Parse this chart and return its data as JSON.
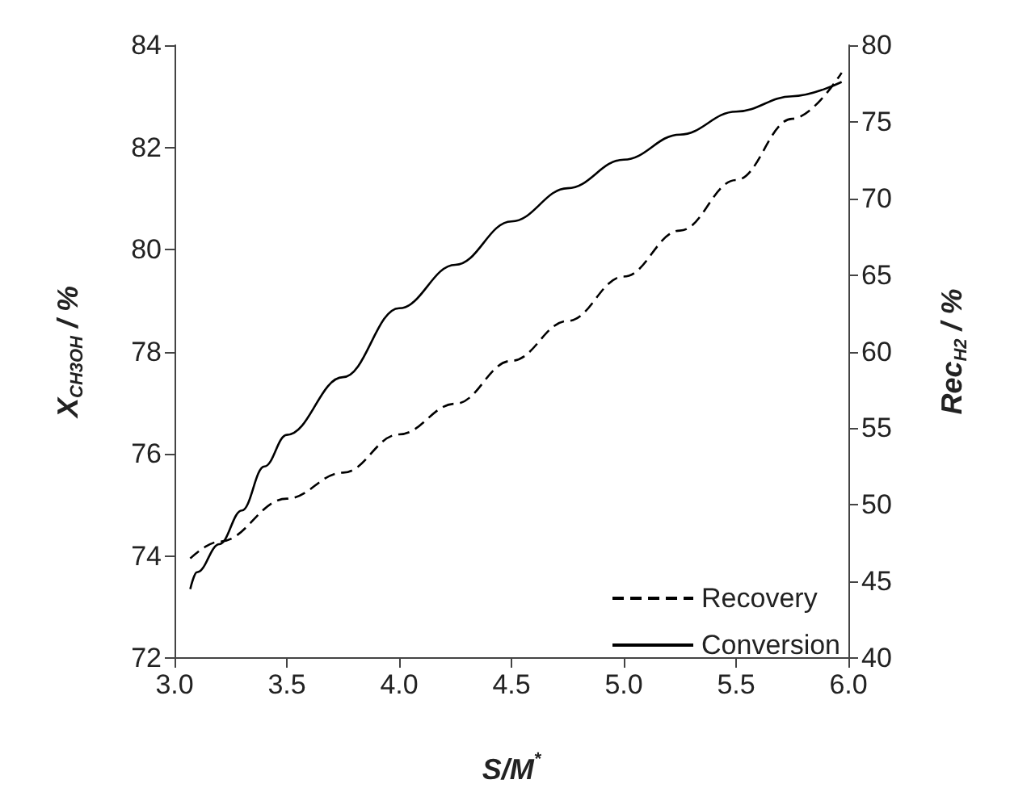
{
  "chart_data": {
    "type": "line",
    "xlabel": "S/M$^{*}$",
    "ylabel": "X$_{CH3OH}$ / %",
    "y2label": "Rec$_{H2}$ / %",
    "xlim": [
      3.0,
      6.0
    ],
    "xticks": [
      {
        "value": 3,
        "label": "3.0"
      },
      3.5,
      {
        "value": 4,
        "label": "4.0"
      },
      4.5,
      {
        "value": 5,
        "label": "5.0"
      },
      5.5,
      {
        "value": 6,
        "label": "6.0"
      }
    ],
    "ylim": [
      72,
      84
    ],
    "yticks": [
      72,
      74,
      76,
      78,
      80,
      82,
      84
    ],
    "y2lim": [
      40,
      80
    ],
    "y2ticks": [
      40,
      45,
      50,
      55,
      60,
      65,
      70,
      75,
      80
    ],
    "grid": false,
    "legend": "bottom right",
    "marker": "none",
    "series": [
      {
        "name": "Recovery",
        "color": "#000000",
        "line_style": "dashed",
        "axis": "y2",
        "x": [
          3.07,
          3.2,
          3.5,
          3.75,
          4.0,
          4.25,
          4.5,
          4.75,
          5.0,
          5.25,
          5.5,
          5.75,
          5.97
        ],
        "values": [
          46.5,
          47.6,
          50.4,
          52.1,
          54.6,
          56.6,
          59.4,
          62.0,
          64.9,
          67.9,
          71.2,
          75.2,
          78.2
        ]
      },
      {
        "name": "Conversion",
        "color": "#000000",
        "line_style": "solid",
        "x": [
          3.07,
          3.1,
          3.2,
          3.3,
          3.4,
          3.5,
          3.75,
          4.0,
          4.25,
          4.5,
          4.75,
          5.0,
          5.25,
          5.5,
          5.75,
          5.97
        ],
        "values": [
          73.35,
          73.68,
          74.23,
          74.89,
          75.75,
          76.37,
          77.5,
          78.85,
          79.7,
          80.55,
          81.2,
          81.76,
          82.25,
          82.7,
          83.0,
          83.28
        ]
      }
    ]
  }
}
